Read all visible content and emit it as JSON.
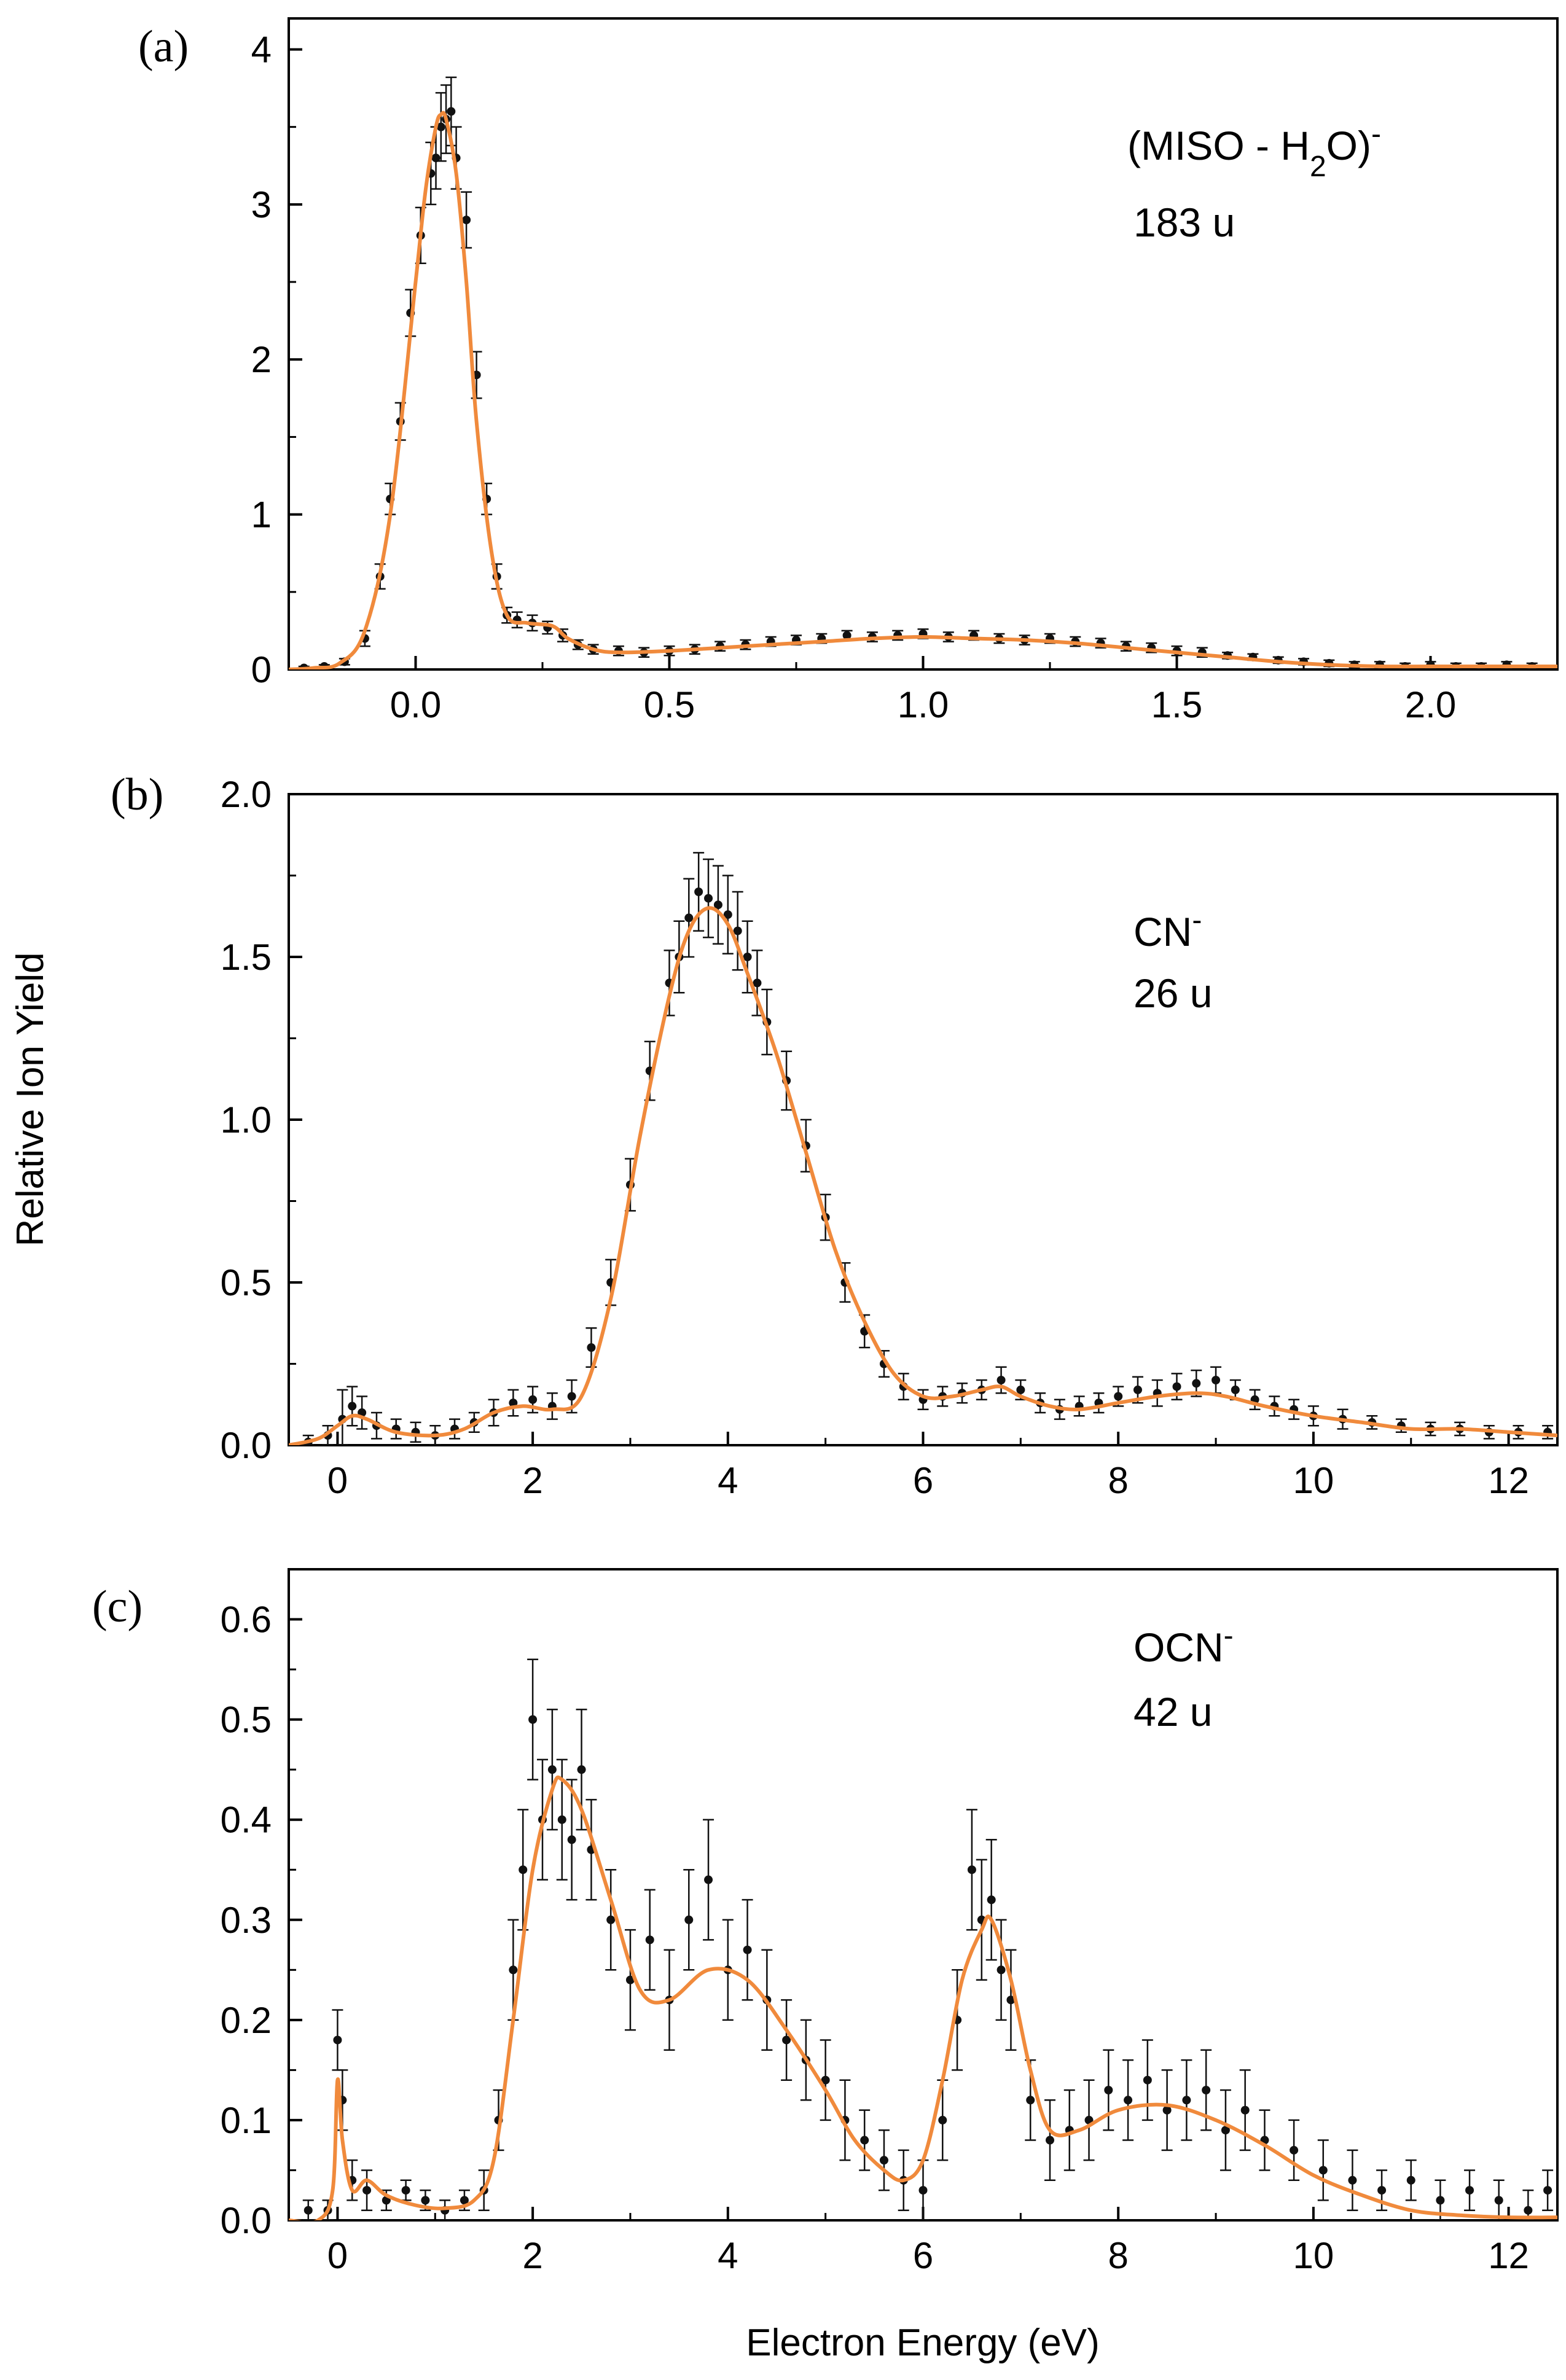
{
  "figure": {
    "ylabel": "Relative Ion Yield",
    "xlabel": "Electron Energy (eV)"
  },
  "colors": {
    "fit": "#F08A3C",
    "data": "#111111",
    "axes": "#000000"
  },
  "chart_data": [
    {
      "type": "scatter",
      "panel": "(a)",
      "ion_main": "(MISO - H",
      "ion_sub": "2",
      "ion_tail": "O)",
      "ion_charge": "-",
      "mass": "183 u",
      "xlim": [
        -0.25,
        2.25
      ],
      "ylim": [
        0,
        4.2
      ],
      "xticks": [
        0.0,
        0.5,
        1.0,
        1.5,
        2.0
      ],
      "xtick_labels": [
        "0.0",
        "0.5",
        "1.0",
        "1.5",
        "2.0"
      ],
      "yticks": [
        0,
        1,
        2,
        3,
        4
      ],
      "ytick_labels": [
        "0",
        "1",
        "2",
        "3",
        "4"
      ],
      "grid": false,
      "series": [
        {
          "role": "fit",
          "x": [
            -0.25,
            -0.2,
            -0.15,
            -0.1,
            -0.05,
            0.0,
            0.02,
            0.04,
            0.05,
            0.06,
            0.08,
            0.1,
            0.12,
            0.15,
            0.18,
            0.22,
            0.27,
            0.3,
            0.35,
            0.4,
            0.5,
            0.6,
            0.7,
            0.8,
            0.9,
            1.0,
            1.1,
            1.2,
            1.3,
            1.4,
            1.5,
            1.6,
            1.7,
            1.8,
            1.9,
            2.0,
            2.1,
            2.25
          ],
          "y": [
            0.0,
            0.01,
            0.04,
            0.25,
            1.0,
            2.5,
            3.1,
            3.5,
            3.58,
            3.55,
            3.2,
            2.5,
            1.6,
            0.75,
            0.35,
            0.3,
            0.28,
            0.2,
            0.13,
            0.11,
            0.12,
            0.14,
            0.16,
            0.18,
            0.2,
            0.21,
            0.2,
            0.19,
            0.17,
            0.14,
            0.11,
            0.08,
            0.05,
            0.03,
            0.02,
            0.02,
            0.02,
            0.02
          ]
        },
        {
          "role": "data",
          "x": [
            -0.22,
            -0.18,
            -0.14,
            -0.1,
            -0.07,
            -0.05,
            -0.03,
            -0.01,
            0.01,
            0.03,
            0.04,
            0.05,
            0.06,
            0.07,
            0.08,
            0.1,
            0.12,
            0.14,
            0.16,
            0.18,
            0.2,
            0.23,
            0.26,
            0.29,
            0.32,
            0.35,
            0.4,
            0.45,
            0.5,
            0.55,
            0.6,
            0.65,
            0.7,
            0.75,
            0.8,
            0.85,
            0.9,
            0.95,
            1.0,
            1.05,
            1.1,
            1.15,
            1.2,
            1.25,
            1.3,
            1.35,
            1.4,
            1.45,
            1.5,
            1.55,
            1.6,
            1.65,
            1.7,
            1.75,
            1.8,
            1.85,
            1.9,
            1.95,
            2.0,
            2.05,
            2.1,
            2.15,
            2.2
          ],
          "y": [
            0.01,
            0.02,
            0.05,
            0.2,
            0.6,
            1.1,
            1.6,
            2.3,
            2.8,
            3.2,
            3.3,
            3.5,
            3.55,
            3.6,
            3.3,
            2.9,
            1.9,
            1.1,
            0.6,
            0.35,
            0.32,
            0.3,
            0.27,
            0.22,
            0.16,
            0.13,
            0.12,
            0.11,
            0.12,
            0.13,
            0.15,
            0.16,
            0.18,
            0.19,
            0.2,
            0.22,
            0.21,
            0.22,
            0.23,
            0.21,
            0.22,
            0.2,
            0.19,
            0.2,
            0.18,
            0.17,
            0.15,
            0.14,
            0.12,
            0.11,
            0.09,
            0.08,
            0.06,
            0.05,
            0.04,
            0.03,
            0.03,
            0.02,
            0.03,
            0.02,
            0.02,
            0.03,
            0.02
          ],
          "err": [
            0.01,
            0.01,
            0.02,
            0.05,
            0.08,
            0.1,
            0.12,
            0.15,
            0.18,
            0.2,
            0.2,
            0.22,
            0.22,
            0.22,
            0.2,
            0.18,
            0.15,
            0.1,
            0.08,
            0.05,
            0.05,
            0.05,
            0.04,
            0.04,
            0.03,
            0.03,
            0.03,
            0.03,
            0.03,
            0.03,
            0.03,
            0.03,
            0.03,
            0.03,
            0.03,
            0.03,
            0.03,
            0.03,
            0.03,
            0.03,
            0.03,
            0.03,
            0.03,
            0.03,
            0.03,
            0.03,
            0.03,
            0.03,
            0.03,
            0.03,
            0.02,
            0.02,
            0.02,
            0.02,
            0.02,
            0.02,
            0.02,
            0.02,
            0.02,
            0.02,
            0.02,
            0.02,
            0.02
          ]
        }
      ]
    },
    {
      "type": "scatter",
      "panel": "(b)",
      "ion_main": "CN",
      "ion_sub": "",
      "ion_tail": "",
      "ion_charge": "-",
      "mass": "26 u",
      "xlim": [
        -0.5,
        12.5
      ],
      "ylim": [
        0,
        2.0
      ],
      "xticks": [
        0,
        2,
        4,
        6,
        8,
        10,
        12
      ],
      "xtick_labels": [
        "0",
        "2",
        "4",
        "6",
        "8",
        "10",
        "12"
      ],
      "yticks": [
        0.0,
        0.5,
        1.0,
        1.5,
        2.0
      ],
      "ytick_labels": [
        "0.0",
        "0.5",
        "1.0",
        "1.5",
        "2.0"
      ],
      "grid": false,
      "series": [
        {
          "role": "fit",
          "x": [
            -0.5,
            -0.2,
            0.0,
            0.15,
            0.3,
            0.6,
            1.0,
            1.3,
            1.6,
            1.9,
            2.2,
            2.5,
            2.8,
            3.1,
            3.4,
            3.6,
            3.8,
            4.0,
            4.2,
            4.5,
            4.8,
            5.1,
            5.4,
            5.7,
            6.0,
            6.3,
            6.6,
            6.8,
            7.0,
            7.3,
            7.6,
            8.0,
            8.4,
            8.8,
            9.1,
            9.5,
            10.0,
            10.5,
            11.0,
            11.5,
            12.0,
            12.5
          ],
          "y": [
            0.0,
            0.02,
            0.06,
            0.09,
            0.08,
            0.04,
            0.03,
            0.05,
            0.1,
            0.12,
            0.11,
            0.15,
            0.45,
            0.95,
            1.38,
            1.58,
            1.65,
            1.6,
            1.45,
            1.2,
            0.9,
            0.6,
            0.38,
            0.22,
            0.15,
            0.15,
            0.17,
            0.18,
            0.15,
            0.12,
            0.11,
            0.13,
            0.15,
            0.16,
            0.15,
            0.12,
            0.09,
            0.07,
            0.05,
            0.05,
            0.04,
            0.03
          ]
        },
        {
          "role": "data",
          "x": [
            -0.3,
            -0.1,
            0.05,
            0.15,
            0.25,
            0.4,
            0.6,
            0.8,
            1.0,
            1.2,
            1.4,
            1.6,
            1.8,
            2.0,
            2.2,
            2.4,
            2.6,
            2.8,
            3.0,
            3.2,
            3.4,
            3.5,
            3.6,
            3.7,
            3.8,
            3.9,
            4.0,
            4.1,
            4.2,
            4.3,
            4.4,
            4.6,
            4.8,
            5.0,
            5.2,
            5.4,
            5.6,
            5.8,
            6.0,
            6.2,
            6.4,
            6.6,
            6.8,
            7.0,
            7.2,
            7.4,
            7.6,
            7.8,
            8.0,
            8.2,
            8.4,
            8.6,
            8.8,
            9.0,
            9.2,
            9.4,
            9.6,
            9.8,
            10.0,
            10.3,
            10.6,
            10.9,
            11.2,
            11.5,
            11.8,
            12.1,
            12.4
          ],
          "y": [
            0.01,
            0.03,
            0.08,
            0.12,
            0.1,
            0.06,
            0.05,
            0.04,
            0.03,
            0.05,
            0.07,
            0.1,
            0.13,
            0.14,
            0.12,
            0.15,
            0.3,
            0.5,
            0.8,
            1.15,
            1.42,
            1.5,
            1.62,
            1.7,
            1.68,
            1.66,
            1.63,
            1.58,
            1.5,
            1.42,
            1.3,
            1.12,
            0.92,
            0.7,
            0.5,
            0.35,
            0.25,
            0.18,
            0.14,
            0.15,
            0.16,
            0.17,
            0.2,
            0.17,
            0.13,
            0.11,
            0.12,
            0.13,
            0.15,
            0.17,
            0.16,
            0.18,
            0.19,
            0.2,
            0.17,
            0.14,
            0.12,
            0.11,
            0.09,
            0.08,
            0.07,
            0.06,
            0.05,
            0.05,
            0.04,
            0.04,
            0.04
          ],
          "err": [
            0.02,
            0.03,
            0.09,
            0.06,
            0.05,
            0.04,
            0.03,
            0.03,
            0.03,
            0.03,
            0.03,
            0.04,
            0.04,
            0.04,
            0.04,
            0.05,
            0.06,
            0.07,
            0.08,
            0.09,
            0.1,
            0.11,
            0.12,
            0.12,
            0.12,
            0.12,
            0.12,
            0.12,
            0.11,
            0.1,
            0.1,
            0.09,
            0.08,
            0.07,
            0.06,
            0.05,
            0.04,
            0.04,
            0.03,
            0.03,
            0.03,
            0.03,
            0.04,
            0.03,
            0.03,
            0.03,
            0.03,
            0.03,
            0.03,
            0.04,
            0.04,
            0.04,
            0.04,
            0.04,
            0.03,
            0.03,
            0.03,
            0.03,
            0.03,
            0.03,
            0.02,
            0.02,
            0.02,
            0.02,
            0.02,
            0.02,
            0.02
          ]
        }
      ]
    },
    {
      "type": "scatter",
      "panel": "(c)",
      "ion_main": "OCN",
      "ion_sub": "",
      "ion_tail": "",
      "ion_charge": "-",
      "mass": "42 u",
      "xlim": [
        -0.5,
        12.5
      ],
      "ylim": [
        0,
        0.65
      ],
      "xticks": [
        0,
        2,
        4,
        6,
        8,
        10,
        12
      ],
      "xtick_labels": [
        "0",
        "2",
        "4",
        "6",
        "8",
        "10",
        "12"
      ],
      "yticks": [
        0.0,
        0.1,
        0.2,
        0.3,
        0.4,
        0.5,
        0.6
      ],
      "ytick_labels": [
        "0.0",
        "0.1",
        "0.2",
        "0.3",
        "0.4",
        "0.5",
        "0.6"
      ],
      "grid": false,
      "series": [
        {
          "role": "fit",
          "x": [
            -0.5,
            -0.2,
            -0.05,
            0.0,
            0.05,
            0.15,
            0.3,
            0.5,
            0.8,
            1.1,
            1.4,
            1.6,
            1.8,
            2.0,
            2.2,
            2.3,
            2.5,
            2.8,
            3.1,
            3.4,
            3.8,
            4.2,
            4.6,
            5.0,
            5.3,
            5.6,
            5.8,
            6.0,
            6.2,
            6.4,
            6.6,
            6.7,
            6.9,
            7.1,
            7.3,
            7.6,
            8.0,
            8.5,
            9.0,
            9.5,
            10.0,
            10.5,
            11.0,
            11.5,
            12.0,
            12.5
          ],
          "y": [
            0.0,
            0.0,
            0.03,
            0.14,
            0.08,
            0.03,
            0.04,
            0.025,
            0.015,
            0.012,
            0.02,
            0.06,
            0.2,
            0.35,
            0.43,
            0.44,
            0.41,
            0.32,
            0.23,
            0.22,
            0.25,
            0.24,
            0.19,
            0.13,
            0.08,
            0.05,
            0.04,
            0.06,
            0.14,
            0.24,
            0.29,
            0.3,
            0.24,
            0.15,
            0.09,
            0.09,
            0.11,
            0.115,
            0.1,
            0.075,
            0.045,
            0.025,
            0.01,
            0.005,
            0.003,
            0.003
          ]
        },
        {
          "role": "data",
          "x": [
            -0.3,
            -0.1,
            0.0,
            0.05,
            0.15,
            0.3,
            0.5,
            0.7,
            0.9,
            1.1,
            1.3,
            1.5,
            1.65,
            1.8,
            1.9,
            2.0,
            2.1,
            2.2,
            2.3,
            2.4,
            2.5,
            2.6,
            2.8,
            3.0,
            3.2,
            3.4,
            3.6,
            3.8,
            4.0,
            4.2,
            4.4,
            4.6,
            4.8,
            5.0,
            5.2,
            5.4,
            5.6,
            5.8,
            6.0,
            6.2,
            6.35,
            6.5,
            6.6,
            6.7,
            6.8,
            6.9,
            7.1,
            7.3,
            7.5,
            7.7,
            7.9,
            8.1,
            8.3,
            8.5,
            8.7,
            8.9,
            9.1,
            9.3,
            9.5,
            9.8,
            10.1,
            10.4,
            10.7,
            11.0,
            11.3,
            11.6,
            11.9,
            12.2,
            12.4
          ],
          "y": [
            0.01,
            0.01,
            0.18,
            0.12,
            0.04,
            0.03,
            0.02,
            0.03,
            0.02,
            0.01,
            0.02,
            0.03,
            0.1,
            0.25,
            0.35,
            0.5,
            0.4,
            0.45,
            0.4,
            0.38,
            0.45,
            0.37,
            0.3,
            0.24,
            0.28,
            0.22,
            0.3,
            0.34,
            0.25,
            0.27,
            0.22,
            0.18,
            0.16,
            0.14,
            0.1,
            0.08,
            0.06,
            0.04,
            0.03,
            0.1,
            0.2,
            0.35,
            0.3,
            0.32,
            0.25,
            0.22,
            0.12,
            0.08,
            0.09,
            0.1,
            0.13,
            0.12,
            0.14,
            0.11,
            0.12,
            0.13,
            0.09,
            0.11,
            0.08,
            0.07,
            0.05,
            0.04,
            0.03,
            0.04,
            0.02,
            0.03,
            0.02,
            0.01,
            0.03
          ],
          "err": [
            0.01,
            0.01,
            0.03,
            0.03,
            0.02,
            0.02,
            0.01,
            0.01,
            0.01,
            0.01,
            0.01,
            0.02,
            0.03,
            0.05,
            0.06,
            0.06,
            0.06,
            0.06,
            0.06,
            0.06,
            0.06,
            0.05,
            0.05,
            0.05,
            0.05,
            0.05,
            0.05,
            0.06,
            0.05,
            0.05,
            0.05,
            0.04,
            0.04,
            0.04,
            0.04,
            0.03,
            0.03,
            0.03,
            0.03,
            0.04,
            0.05,
            0.06,
            0.06,
            0.06,
            0.05,
            0.05,
            0.04,
            0.04,
            0.04,
            0.04,
            0.04,
            0.04,
            0.04,
            0.04,
            0.04,
            0.04,
            0.04,
            0.04,
            0.03,
            0.03,
            0.03,
            0.03,
            0.02,
            0.02,
            0.02,
            0.02,
            0.02,
            0.02,
            0.02
          ]
        }
      ]
    }
  ]
}
